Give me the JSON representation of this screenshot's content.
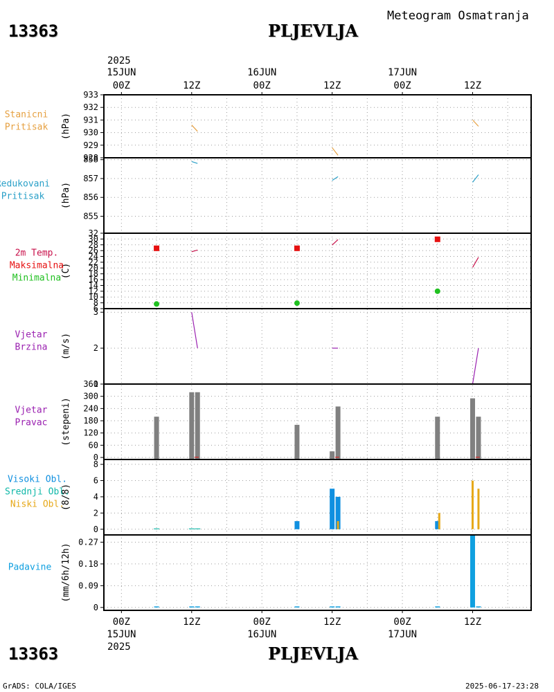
{
  "header": {
    "station_id": "13363",
    "station_name": "PLJEVLJA",
    "subtitle": "Meteogram Osmatranja"
  },
  "footer": {
    "station_id": "13363",
    "station_name": "PLJEVLJA",
    "credit": "GrADS: COLA/IGES",
    "timestamp": "2025-06-17-23:28"
  },
  "time_axis": {
    "top_year": "2025",
    "bottom_year": "2025",
    "hour_labels": [
      "00Z",
      "12Z",
      "00Z",
      "12Z",
      "00Z",
      "12Z"
    ],
    "hour_values": [
      0,
      12,
      24,
      36,
      48,
      60
    ],
    "date_labels": [
      "15JUN",
      "16JUN",
      "17JUN"
    ],
    "date_values": [
      0,
      24,
      48
    ],
    "xlim": [
      -3,
      70
    ],
    "grid_step": 6
  },
  "colors": {
    "station_pressure": "#e6a040",
    "reduced_pressure": "#2aa0c8",
    "temp_label": "#c8104a",
    "temp_max": "#e61010",
    "temp_min": "#20c020",
    "wind": "#9a20b0",
    "wind_dir_bar": "#808080",
    "high_cloud": "#1090e0",
    "mid_cloud": "#10b8a8",
    "low_cloud": "#e6a818",
    "precip": "#10a0e0"
  },
  "chart_data": [
    {
      "type": "line",
      "name": "station-pressure",
      "labels": [
        "Stanicni",
        "Pritisak"
      ],
      "ylabel": "(hPa)",
      "ylim": [
        928,
        933
      ],
      "yticks": [
        928,
        929,
        930,
        931,
        932,
        933
      ],
      "ytick_labels": [
        "928",
        "929",
        "930",
        "931",
        "932",
        "933"
      ],
      "segments": [
        [
          [
            12,
            930.6
          ],
          [
            13,
            930.1
          ]
        ],
        [
          [
            36,
            928.8
          ],
          [
            37,
            928.2
          ]
        ],
        [
          [
            60,
            931.0
          ],
          [
            61,
            930.5
          ]
        ]
      ]
    },
    {
      "type": "line",
      "name": "reduced-pressure",
      "labels": [
        "Redukovani",
        "Pritisak"
      ],
      "ylabel": "(hPa)",
      "ylim": [
        854.1,
        858.1
      ],
      "yticks": [
        855,
        856,
        857,
        858
      ],
      "ytick_labels": [
        "855",
        "856",
        "857",
        "858"
      ],
      "segments": [
        [
          [
            12,
            857.9
          ],
          [
            13,
            857.8
          ]
        ],
        [
          [
            36,
            856.9
          ],
          [
            37,
            857.1
          ]
        ],
        [
          [
            60,
            856.8
          ],
          [
            61,
            857.2
          ]
        ]
      ]
    },
    {
      "type": "scatter",
      "name": "temperature",
      "labels": [
        "2m Temp.",
        "Maksimalna",
        "Minimalna"
      ],
      "ylabel": "(C)",
      "ylim": [
        6,
        32
      ],
      "yticks": [
        6,
        8,
        10,
        12,
        14,
        16,
        18,
        20,
        22,
        24,
        26,
        28,
        30,
        32
      ],
      "ytick_labels": [
        "6",
        "8",
        "10",
        "12",
        "14",
        "16",
        "18",
        "20",
        "22",
        "24",
        "26",
        "28",
        "30",
        "32"
      ],
      "max_points": [
        [
          6,
          26.8
        ],
        [
          30,
          26.8
        ],
        [
          54,
          29.9
        ]
      ],
      "min_points": [
        [
          6,
          7.6
        ],
        [
          30,
          7.9
        ],
        [
          54,
          12.0
        ]
      ],
      "segments": [
        [
          [
            12,
            25.6
          ],
          [
            13,
            26.2
          ]
        ],
        [
          [
            36,
            27.9
          ],
          [
            37,
            29.8
          ]
        ],
        [
          [
            60,
            20.2
          ],
          [
            61,
            23.7
          ]
        ]
      ]
    },
    {
      "type": "line",
      "name": "wind-speed",
      "labels": [
        "Vjetar",
        "Brzina"
      ],
      "ylabel": "(m/s)",
      "ylim": [
        1,
        3.1
      ],
      "yticks": [
        1,
        2,
        3
      ],
      "ytick_labels": [
        "1",
        "2",
        "3"
      ],
      "segments": [
        [
          [
            12,
            3.0
          ],
          [
            13,
            2.0
          ]
        ],
        [
          [
            36,
            2.0
          ],
          [
            37,
            2.0
          ]
        ],
        [
          [
            60,
            1.0
          ],
          [
            61,
            2.0
          ]
        ]
      ]
    },
    {
      "type": "bar",
      "name": "wind-direction",
      "labels": [
        "Vjetar",
        "Pravac"
      ],
      "ylabel": "(stepeni)",
      "ylim": [
        -10,
        360
      ],
      "yticks": [
        0,
        60,
        120,
        180,
        240,
        300,
        360
      ],
      "ytick_labels": [
        "0",
        "60",
        "120",
        "180",
        "240",
        "300",
        "360"
      ],
      "bars": [
        {
          "x": 6,
          "value": 200
        },
        {
          "x": 12,
          "value": 320
        },
        {
          "x": 13,
          "value": 320
        },
        {
          "x": 30,
          "value": 160
        },
        {
          "x": 36,
          "value": 30
        },
        {
          "x": 37,
          "value": 250
        },
        {
          "x": 54,
          "value": 200
        },
        {
          "x": 60,
          "value": 290
        },
        {
          "x": 61,
          "value": 200
        }
      ]
    },
    {
      "type": "bar",
      "name": "cloud-cover",
      "labels": [
        "Visoki Obl.",
        "Srednji Obl.",
        "Niski Obl."
      ],
      "ylabel": "(8/8)",
      "ylim": [
        -0.7,
        8.6
      ],
      "yticks": [
        0,
        2,
        4,
        6,
        8
      ],
      "ytick_labels": [
        "0",
        "2",
        "4",
        "6",
        "8"
      ],
      "series": [
        {
          "name": "Visoki Obl.",
          "bars": [
            [
              30,
              1
            ],
            [
              36,
              5
            ],
            [
              37,
              4
            ],
            [
              54,
              1
            ]
          ]
        },
        {
          "name": "Srednji Obl.",
          "bars": [
            [
              6,
              0.1
            ],
            [
              12,
              0.1
            ],
            [
              13,
              0.1
            ]
          ]
        },
        {
          "name": "Niski Obl.",
          "bars": [
            [
              37,
              1
            ],
            [
              54.3,
              2
            ],
            [
              60,
              6
            ],
            [
              61,
              5
            ]
          ]
        }
      ]
    },
    {
      "type": "bar",
      "name": "precipitation",
      "labels": [
        "Padavine"
      ],
      "ylabel": "(mm/6h/12h)",
      "ylim": [
        -0.012,
        0.3
      ],
      "yticks": [
        0,
        0.09,
        0.18,
        0.27
      ],
      "ytick_labels": [
        "0",
        "0.09",
        "0.18",
        "0.27"
      ],
      "bars": [
        [
          60,
          0.3
        ]
      ],
      "trace_bars": [
        6,
        12,
        13,
        30,
        36,
        37,
        54,
        61
      ]
    }
  ]
}
